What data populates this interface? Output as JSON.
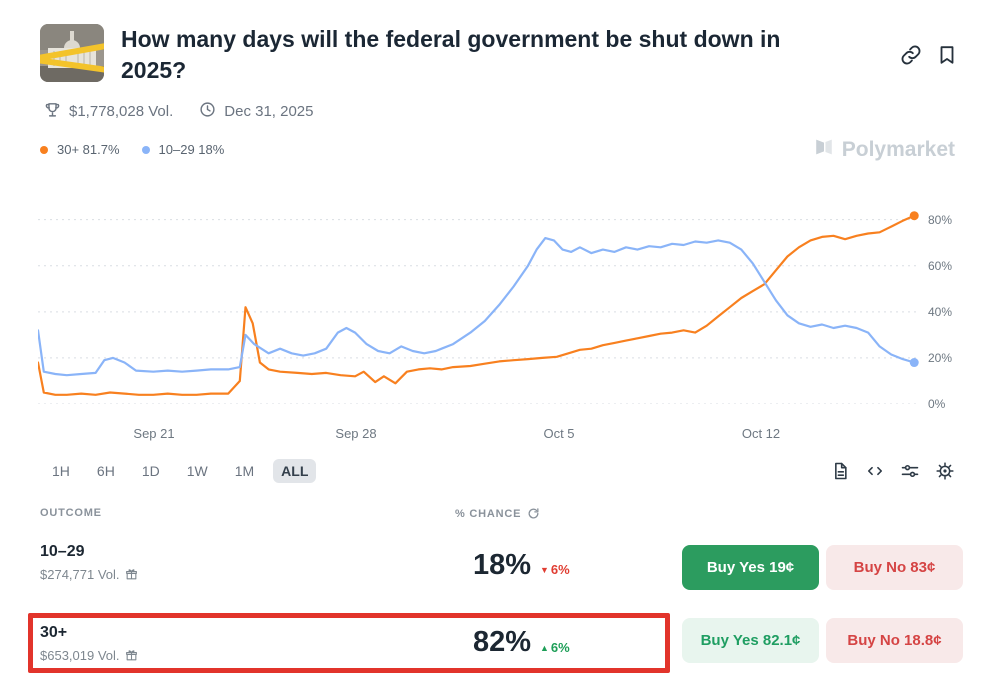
{
  "header": {
    "title": "How many days will the federal government be shut down in 2025?",
    "volume": "$1,778,028 Vol.",
    "end_date": "Dec 31, 2025"
  },
  "watermark": "Polymarket",
  "legend": [
    {
      "label": "30+ 81.7%",
      "color": "#f8801f"
    },
    {
      "label": "10–29 18%",
      "color": "#8ab4f8"
    }
  ],
  "chart_data": {
    "type": "line",
    "x_unit": "days since Sep 17, 2025",
    "x_tick_labels": [
      "Sep 21",
      "Sep 28",
      "Oct 5",
      "Oct 12"
    ],
    "x_tick_days": [
      4,
      11,
      18,
      25
    ],
    "y_tick_labels": [
      "0%",
      "20%",
      "40%",
      "60%",
      "80%"
    ],
    "grid_levels": [
      0,
      20,
      40,
      60,
      80
    ],
    "grid": "dotted horizontal",
    "legend_position": "top-left",
    "xlim": [
      0,
      30.6
    ],
    "ylim": [
      0,
      92
    ],
    "series": [
      {
        "name": "30+",
        "current": "81.7%",
        "color": "#f8801f",
        "x": [
          0,
          0.2,
          0.6,
          1,
          1.5,
          2,
          2.5,
          3,
          3.5,
          4,
          4.5,
          5,
          5.5,
          6,
          6.6,
          7,
          7.2,
          7.45,
          7.7,
          8,
          8.4,
          9,
          9.5,
          10,
          10.5,
          11,
          11.3,
          11.7,
          12,
          12.4,
          12.8,
          13.2,
          13.6,
          14,
          14.4,
          15,
          15.5,
          16,
          16.5,
          17,
          17.5,
          18,
          18.4,
          18.8,
          19.2,
          19.6,
          20,
          20.4,
          20.8,
          21.2,
          21.6,
          22,
          22.4,
          22.8,
          23.2,
          23.6,
          24,
          24.4,
          24.8,
          25.2,
          25.6,
          26,
          26.4,
          26.8,
          27.2,
          27.6,
          28,
          28.4,
          28.8,
          29.2,
          29.6,
          30,
          30.4
        ],
        "y": [
          18,
          5,
          4,
          4,
          4.5,
          4,
          5,
          4.5,
          4,
          4,
          4.5,
          4,
          4,
          4.5,
          4.5,
          10,
          42,
          35,
          18,
          15,
          14,
          13.5,
          13,
          13.5,
          12.5,
          12,
          14,
          9.5,
          12,
          9,
          14,
          15,
          15.5,
          15,
          16,
          16.5,
          17.5,
          18.5,
          19,
          19.5,
          20,
          20.5,
          22,
          23.5,
          24,
          25.5,
          26.5,
          27.5,
          28.5,
          29.5,
          30.5,
          31,
          32,
          31,
          34,
          38,
          42,
          46,
          49,
          52,
          58,
          64,
          68,
          71,
          72.5,
          73,
          71.5,
          73,
          74,
          74.5,
          77,
          79.5,
          81.7
        ]
      },
      {
        "name": "10–29",
        "current": "18%",
        "color": "#8ab4f8",
        "x": [
          0,
          0.2,
          0.6,
          1,
          1.5,
          2,
          2.3,
          2.6,
          3,
          3.4,
          4,
          4.5,
          5,
          5.5,
          6,
          6.6,
          7,
          7.2,
          7.5,
          8,
          8.4,
          8.8,
          9.2,
          9.6,
          10,
          10.4,
          10.7,
          11,
          11.4,
          11.8,
          12.2,
          12.6,
          13,
          13.4,
          13.8,
          14,
          14.4,
          15,
          15.5,
          16,
          16.5,
          17,
          17.3,
          17.6,
          17.9,
          18.2,
          18.5,
          18.8,
          19.2,
          19.6,
          20,
          20.4,
          20.8,
          21.2,
          21.6,
          22,
          22.4,
          22.8,
          23.2,
          23.6,
          24,
          24.4,
          24.8,
          25.2,
          25.6,
          26,
          26.4,
          26.8,
          27.2,
          27.6,
          28,
          28.4,
          28.8,
          29.2,
          29.6,
          30,
          30.4
        ],
        "y": [
          32,
          14,
          13,
          12.5,
          13,
          13.5,
          19,
          20,
          18,
          14.5,
          14,
          14.5,
          14,
          14.5,
          15,
          15,
          16,
          30,
          26,
          22,
          24,
          22,
          21,
          22,
          24,
          31,
          33,
          31,
          26,
          23,
          22,
          25,
          23,
          22,
          23,
          24,
          26,
          31,
          36,
          43,
          51,
          60,
          67,
          72,
          71,
          67,
          66,
          68,
          65.5,
          67,
          66,
          68,
          67,
          68.5,
          68,
          69.5,
          69,
          70.5,
          70,
          71,
          70,
          67,
          61,
          53,
          45,
          38.5,
          35,
          33.5,
          34.5,
          33,
          34,
          33,
          31,
          25,
          21.5,
          19.5,
          18
        ]
      }
    ]
  },
  "toolbar": {
    "ranges": [
      "1H",
      "6H",
      "1D",
      "1W",
      "1M",
      "ALL"
    ],
    "active": "ALL"
  },
  "table": {
    "outcome_header": "OUTCOME",
    "chance_header": "% CHANCE",
    "rows": [
      {
        "outcome": "10–29",
        "volume": "$274,771 Vol.",
        "chance": "18%",
        "change_icon": "▼",
        "change": "6%",
        "direction": "down",
        "buy_yes": "Buy Yes 19¢",
        "buy_no": "Buy No 83¢"
      },
      {
        "outcome": "30+",
        "volume": "$653,019 Vol.",
        "chance": "82%",
        "change_icon": "▲",
        "change": "6%",
        "direction": "up",
        "buy_yes": "Buy Yes 82.1¢",
        "buy_no": "Buy No 18.8¢",
        "highlighted": true
      }
    ]
  },
  "colors": {
    "series_orange": "#f8801f",
    "series_blue": "#8ab4f8",
    "buy_yes_solid": "#2c9c5f",
    "buy_yes_light_bg": "#e8f5ee",
    "buy_yes_light_text": "#1f9e62",
    "buy_no_light_bg": "#f8e9e9",
    "buy_no_text": "#d54444",
    "up_green": "#1d9e57",
    "down_red": "#e03d32",
    "highlight_red": "#e2342b"
  }
}
